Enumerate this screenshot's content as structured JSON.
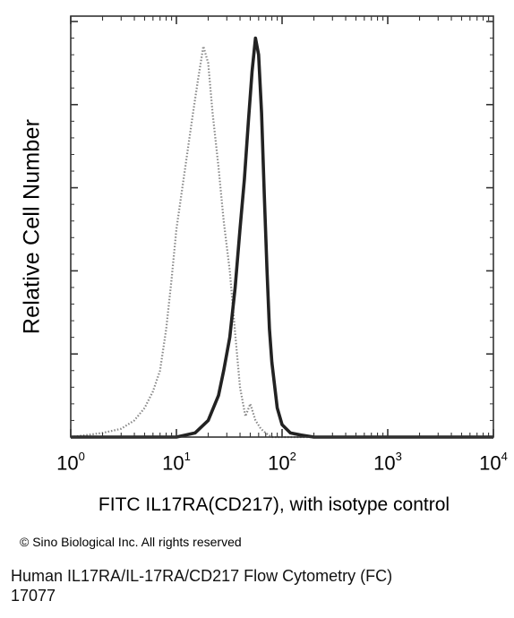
{
  "chart_data": {
    "type": "area",
    "xscale": "log",
    "xlim": [
      1,
      10000
    ],
    "ylim": [
      0,
      1
    ],
    "title": "",
    "xlabel": "FITC IL17RA(CD217), with isotype control",
    "ylabel": "Relative Cell Number",
    "grid": false,
    "legend": "none",
    "x_ticks": [
      {
        "value": 1,
        "base": "10",
        "exp": "0"
      },
      {
        "value": 10,
        "base": "10",
        "exp": "1"
      },
      {
        "value": 100,
        "base": "10",
        "exp": "2"
      },
      {
        "value": 1000,
        "base": "10",
        "exp": "3"
      },
      {
        "value": 10000,
        "base": "10",
        "exp": "4"
      }
    ],
    "series": [
      {
        "style": "dotted",
        "color": "#888888",
        "x": [
          1,
          2,
          3,
          4,
          5,
          6,
          7,
          8,
          9,
          10,
          12,
          14,
          16,
          18,
          20,
          22,
          25,
          28,
          32,
          36,
          40,
          45,
          50,
          56,
          63,
          70,
          80,
          100,
          150,
          10000
        ],
        "y": [
          0.0,
          0.01,
          0.02,
          0.04,
          0.07,
          0.11,
          0.16,
          0.26,
          0.38,
          0.5,
          0.64,
          0.76,
          0.86,
          0.94,
          0.9,
          0.78,
          0.65,
          0.52,
          0.4,
          0.25,
          0.12,
          0.05,
          0.08,
          0.04,
          0.02,
          0.01,
          0.0,
          0.0,
          0.0,
          0.0
        ]
      },
      {
        "style": "solid",
        "color": "#222222",
        "x": [
          1,
          5,
          10,
          15,
          20,
          25,
          28,
          32,
          36,
          40,
          44,
          48,
          52,
          56,
          60,
          64,
          68,
          72,
          76,
          80,
          90,
          100,
          120,
          150,
          200,
          300,
          10000
        ],
        "y": [
          0.0,
          0.0,
          0.0,
          0.01,
          0.04,
          0.1,
          0.16,
          0.24,
          0.36,
          0.5,
          0.62,
          0.76,
          0.88,
          0.96,
          0.92,
          0.78,
          0.58,
          0.4,
          0.26,
          0.18,
          0.07,
          0.03,
          0.01,
          0.005,
          0.0,
          0.0,
          0.0
        ]
      }
    ]
  },
  "copyright": "© Sino Biological Inc. All rights reserved",
  "caption": {
    "line1": "Human IL17RA/IL-17RA/CD217 Flow Cytometry (FC)",
    "line2": "17077"
  }
}
